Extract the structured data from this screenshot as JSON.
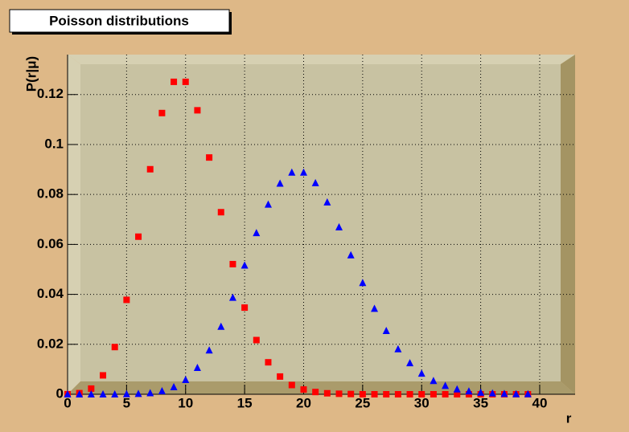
{
  "chart_data": {
    "type": "scatter",
    "title": "Poisson distributions",
    "xlabel": "r",
    "ylabel": "P(r|μ)",
    "x": [
      0,
      1,
      2,
      3,
      4,
      5,
      6,
      7,
      8,
      9,
      10,
      11,
      12,
      13,
      14,
      15,
      16,
      17,
      18,
      19,
      20,
      21,
      22,
      23,
      24,
      25,
      26,
      27,
      28,
      29,
      30,
      31,
      32,
      33,
      34,
      35,
      36,
      37,
      38,
      39
    ],
    "series": [
      {
        "color": "#ff0000",
        "marker": "square",
        "values": [
          4.54e-05,
          0.000454,
          0.00227,
          0.00757,
          0.0189,
          0.0378,
          0.0631,
          0.0901,
          0.1126,
          0.1251,
          0.1251,
          0.1137,
          0.0948,
          0.0729,
          0.0521,
          0.0347,
          0.0217,
          0.0128,
          0.0071,
          0.0037,
          0.0019,
          0.0009,
          0.0004,
          0.0002,
          0.0001,
          0,
          0,
          0,
          0,
          0,
          0,
          0,
          0,
          0,
          0,
          0,
          0,
          0,
          0,
          0
        ]
      },
      {
        "color": "#0000ff",
        "marker": "triangle",
        "values": [
          0,
          0,
          0,
          0,
          0,
          0.0001,
          0.0002,
          0.0005,
          0.0013,
          0.0029,
          0.0058,
          0.0106,
          0.0176,
          0.0271,
          0.0387,
          0.0516,
          0.0646,
          0.076,
          0.0844,
          0.0888,
          0.0888,
          0.0846,
          0.0769,
          0.0669,
          0.0557,
          0.0446,
          0.0343,
          0.0254,
          0.0181,
          0.0125,
          0.0083,
          0.0054,
          0.0034,
          0.002,
          0.0012,
          0.0007,
          0.0004,
          0.0002,
          0.0001,
          0.0001
        ]
      }
    ],
    "xlim": [
      0,
      43
    ],
    "ylim": [
      0,
      0.136
    ],
    "xticks": [
      0,
      5,
      10,
      15,
      20,
      25,
      30,
      35,
      40
    ],
    "yticks": [
      0,
      0.02,
      0.04,
      0.06,
      0.08,
      0.1,
      0.12
    ],
    "grid": true
  }
}
